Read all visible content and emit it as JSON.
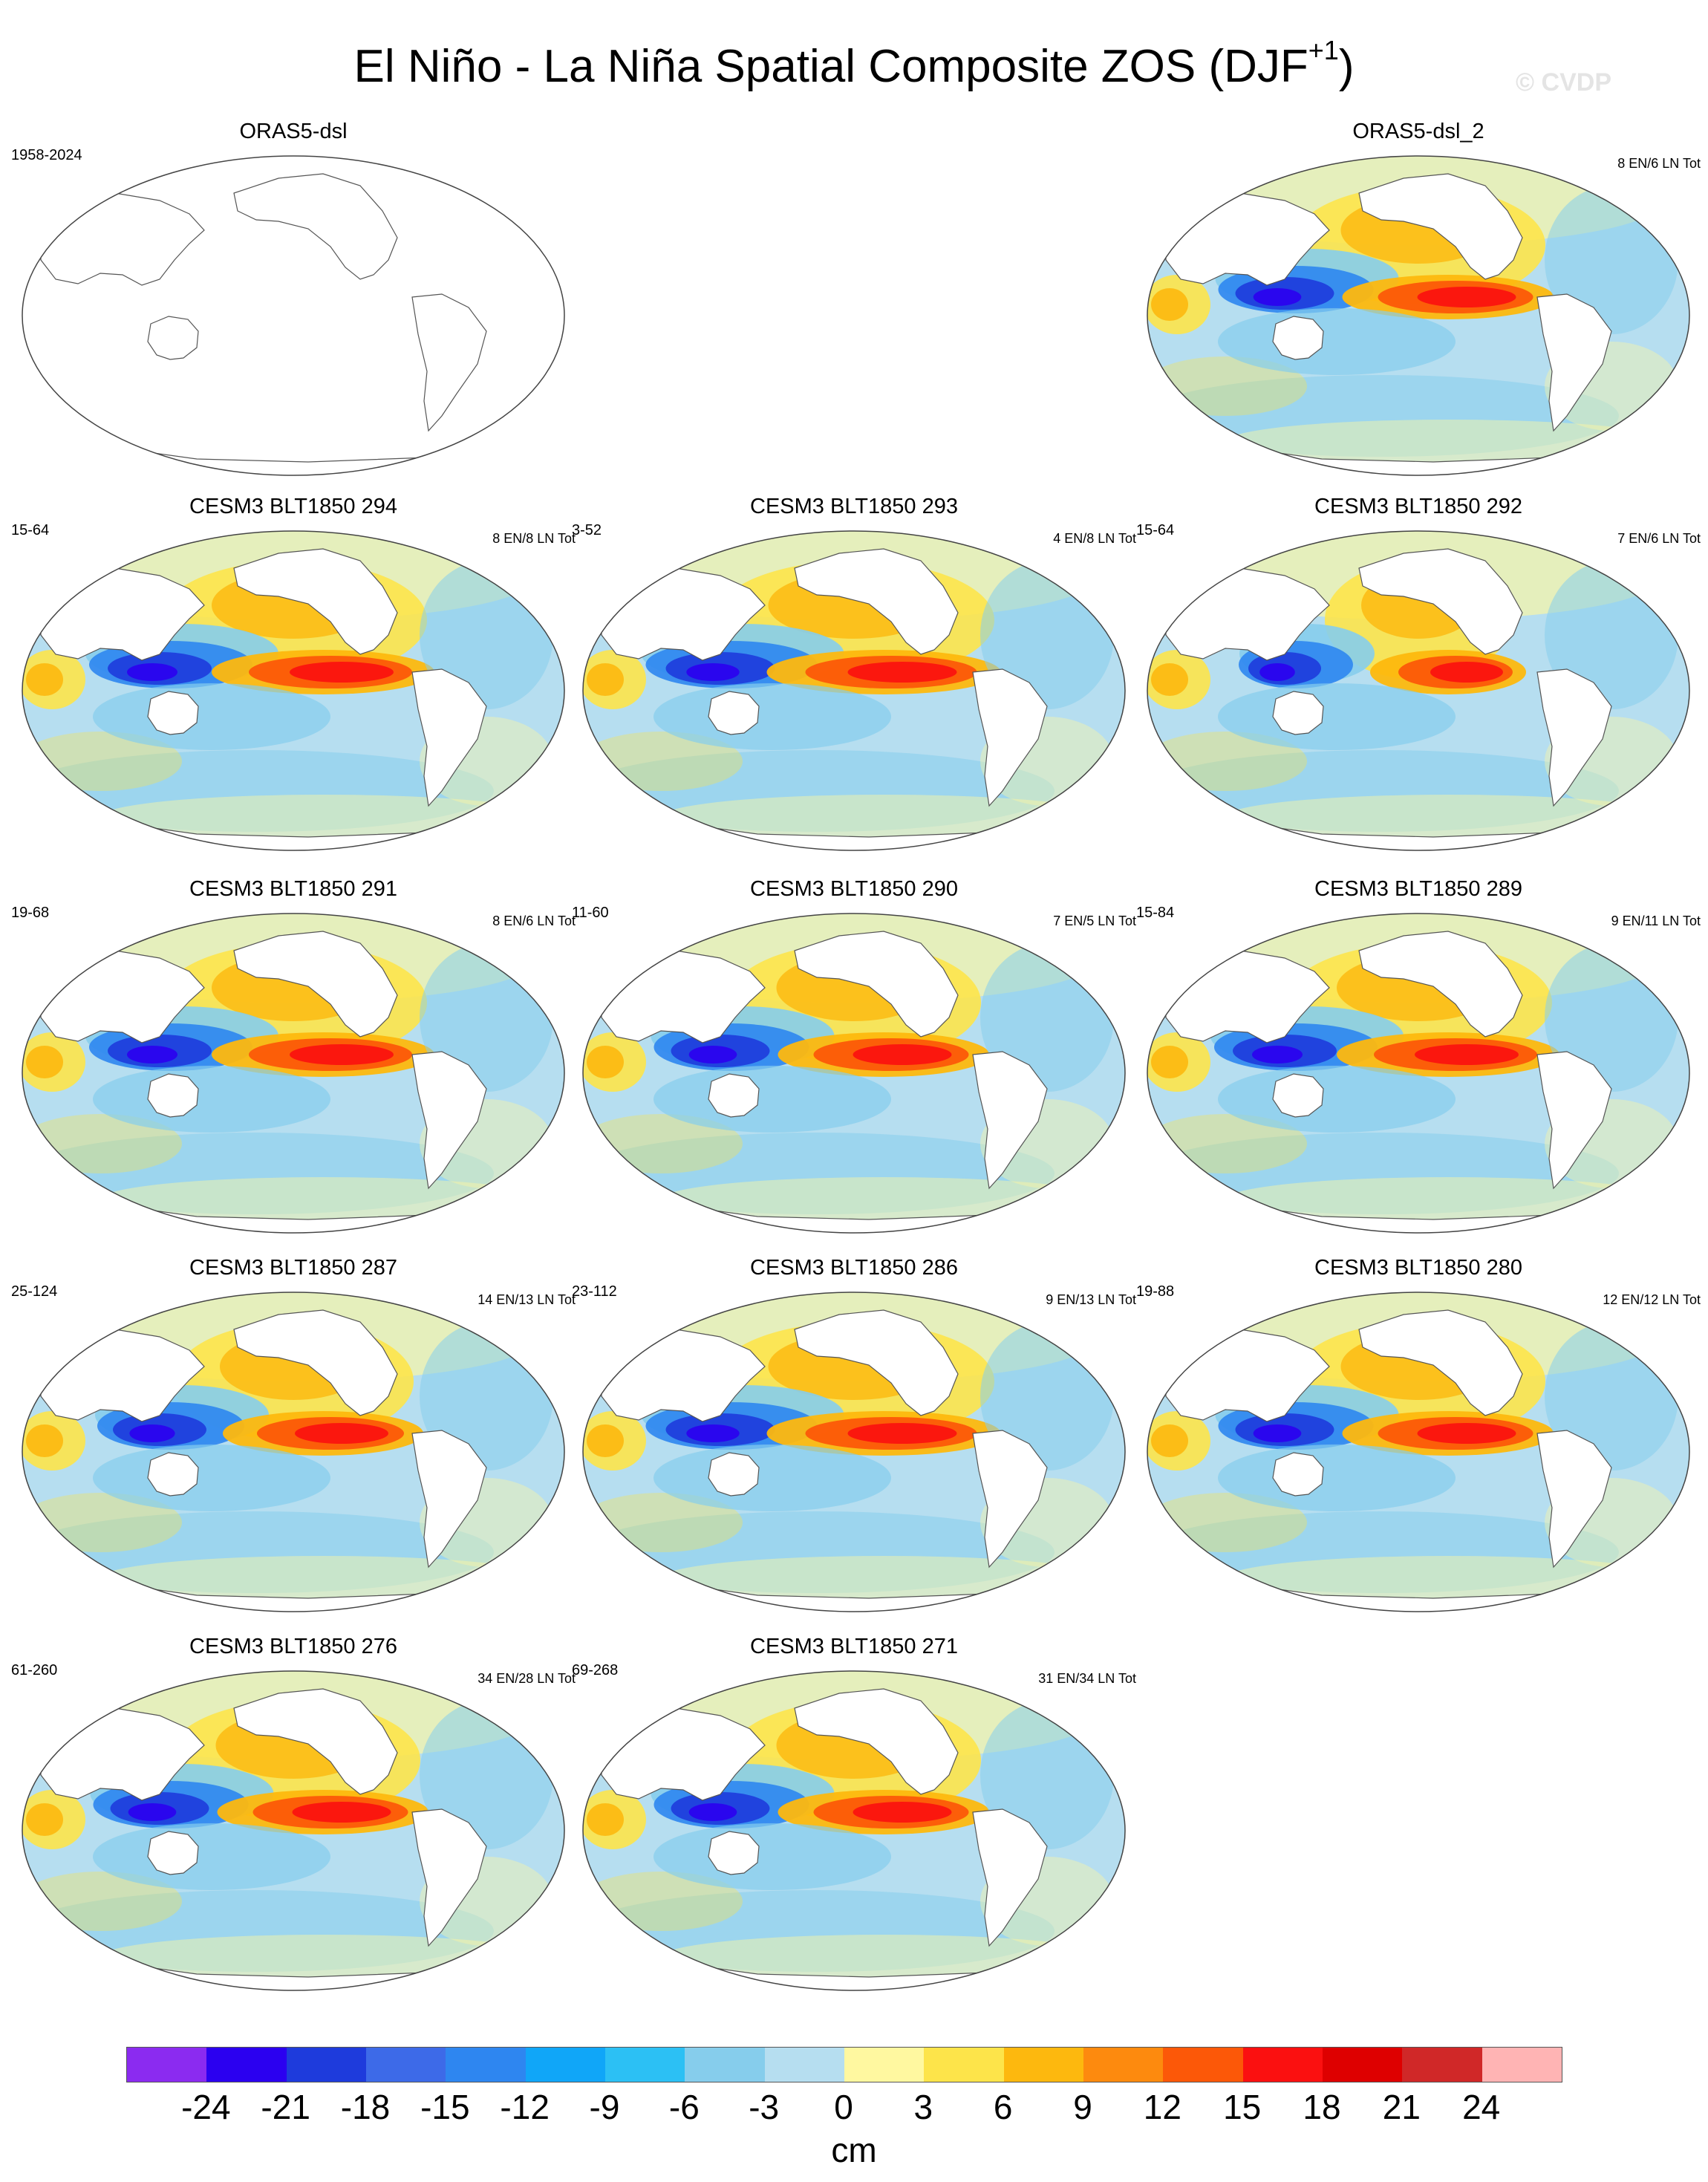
{
  "title": "El Niño - La Niña Spatial Composite ZOS (DJF",
  "title_sup": "+1",
  "title_close": ")",
  "watermark": "© CVDP",
  "panels": [
    {
      "title": "ORAS5-dsl",
      "years": "1958-2024",
      "count": "",
      "blank": true
    },
    {
      "title": "ORAS5-dsl_2",
      "years": "",
      "count": "8 EN/6 LN Tot",
      "intensity": 0.95
    },
    {
      "title": "CESM3 BLT1850 294",
      "years": "15-64",
      "count": "8 EN/8 LN Tot",
      "intensity": 1.0
    },
    {
      "title": "CESM3 BLT1850 293",
      "years": "3-52",
      "count": "4 EN/8 LN Tot",
      "intensity": 1.05
    },
    {
      "title": "CESM3 BLT1850 292",
      "years": "15-64",
      "count": "7 EN/6 LN Tot",
      "intensity": 0.7
    },
    {
      "title": "CESM3 BLT1850 291",
      "years": "19-68",
      "count": "8 EN/6 LN Tot",
      "intensity": 1.0
    },
    {
      "title": "CESM3 BLT1850 290",
      "years": "11-60",
      "count": "7 EN/5 LN Tot",
      "intensity": 0.95
    },
    {
      "title": "CESM3 BLT1850 289",
      "years": "15-84",
      "count": "9 EN/11 LN Tot",
      "intensity": 1.0
    },
    {
      "title": "CESM3 BLT1850 287",
      "years": "25-124",
      "count": "14 EN/13 LN Tot",
      "intensity": 0.9
    },
    {
      "title": "CESM3 BLT1850 286",
      "years": "23-112",
      "count": "9 EN/13 LN Tot",
      "intensity": 1.05
    },
    {
      "title": "CESM3 BLT1850 280",
      "years": "19-88",
      "count": "12 EN/12 LN Tot",
      "intensity": 0.95
    },
    {
      "title": "CESM3 BLT1850 276",
      "years": "61-260",
      "count": "34 EN/28 LN Tot",
      "intensity": 0.95
    },
    {
      "title": "CESM3 BLT1850 271",
      "years": "69-268",
      "count": "31 EN/34 LN Tot",
      "intensity": 0.95
    }
  ],
  "colorbar": {
    "colors": [
      "#8b2bf0",
      "#2b00f0",
      "#1e3bdc",
      "#3d6ae8",
      "#2e86f0",
      "#10a6f8",
      "#2cc0f4",
      "#86cdec",
      "#b6def0",
      "#fff8a0",
      "#fde44a",
      "#fdb80e",
      "#fd8a0e",
      "#fc5808",
      "#fb1010",
      "#de0000",
      "#d02828",
      "#ffb4b4"
    ],
    "ticks": [
      "-24",
      "-21",
      "-18",
      "-15",
      "-12",
      "-9",
      "-6",
      "-3",
      "0",
      "3",
      "6",
      "9",
      "12",
      "15",
      "18",
      "21",
      "24"
    ],
    "unit": "cm"
  }
}
